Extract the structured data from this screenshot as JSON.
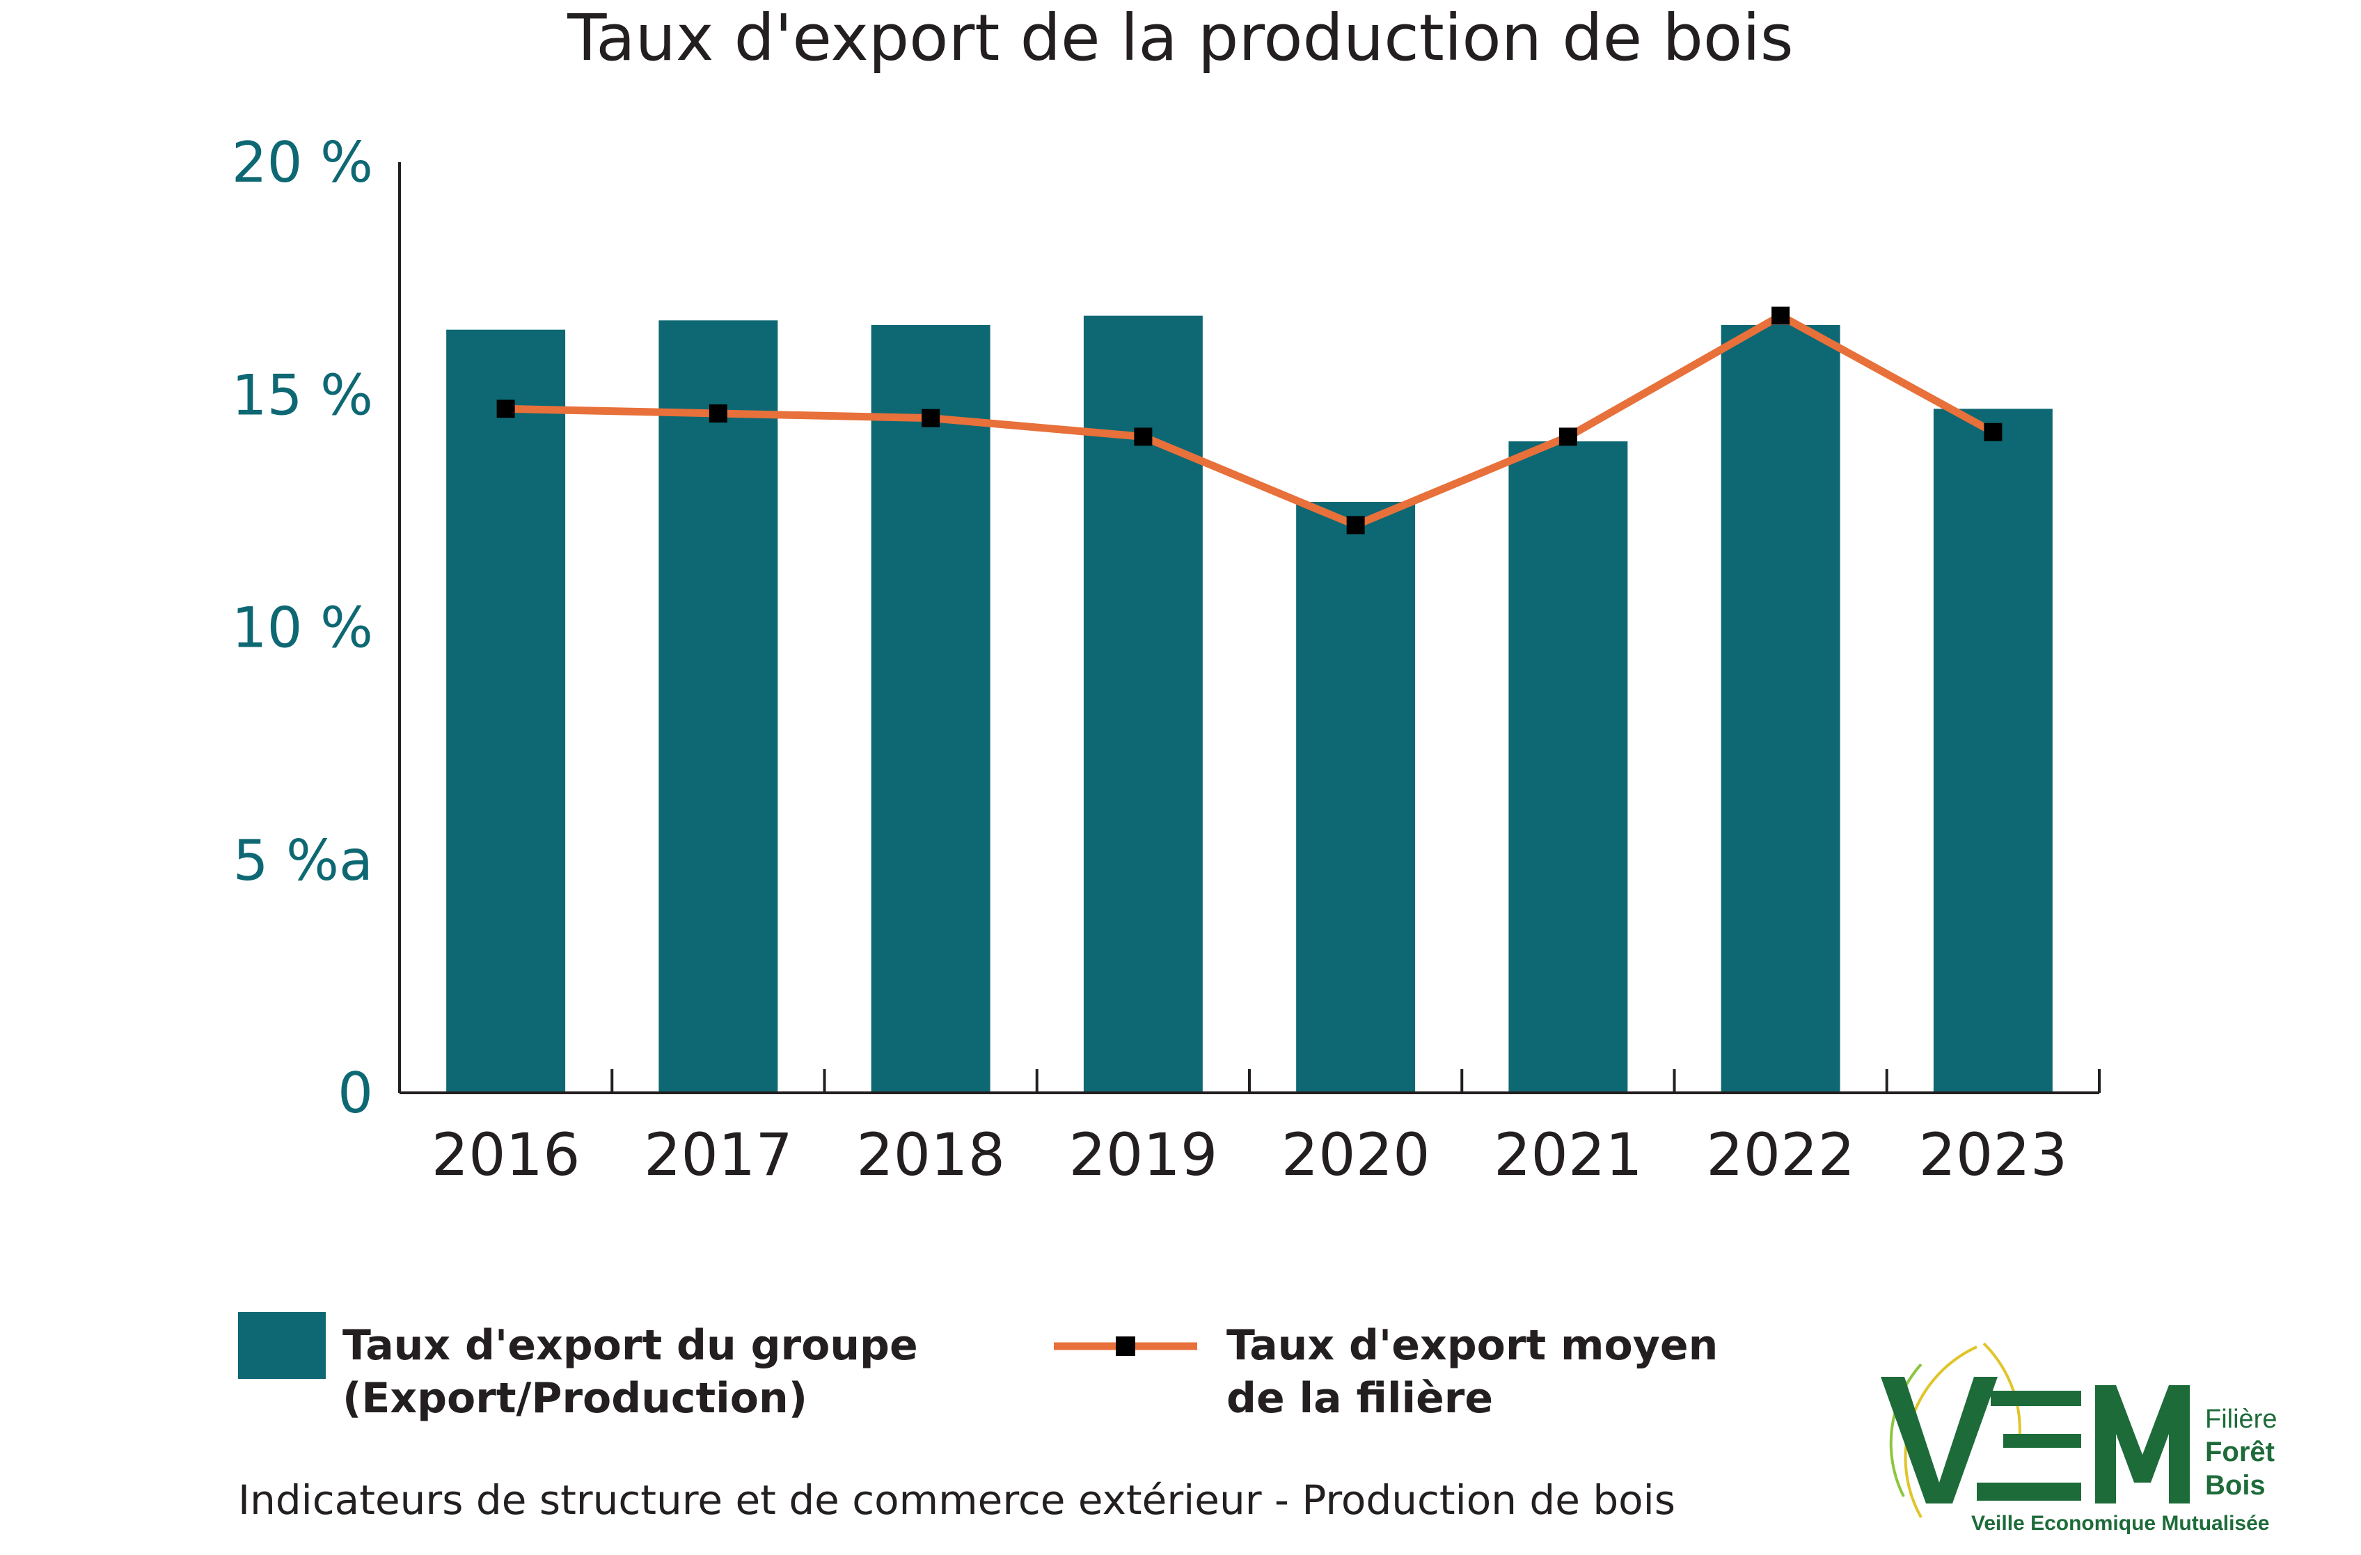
{
  "title": "Taux d'export de la production de bois",
  "chart_data": {
    "type": "bar",
    "categories": [
      "2016",
      "2017",
      "2018",
      "2019",
      "2020",
      "2021",
      "2022",
      "2023"
    ],
    "series": [
      {
        "name": "Taux d'export du groupe (Export/Production)",
        "type": "bar",
        "values": [
          16.4,
          16.6,
          16.5,
          16.7,
          12.7,
          14.0,
          16.5,
          14.7
        ]
      },
      {
        "name": "Taux d'export moyen de la filière",
        "type": "line",
        "values": [
          14.7,
          14.6,
          14.5,
          14.1,
          12.2,
          14.1,
          16.7,
          14.2
        ]
      }
    ],
    "y_ticks": [
      "0",
      "5 %a",
      "10 %",
      "15 %",
      "20 %"
    ],
    "y_tick_values": [
      0,
      5,
      10,
      15,
      20
    ],
    "ylim": [
      0,
      20
    ],
    "grid": false,
    "colors": {
      "bar": "#0e6873",
      "line": "#e8703a",
      "marker": "#000000",
      "axis": "#231f20",
      "ytick_text": "#0e6873",
      "xtick_text": "#231f20"
    }
  },
  "legend": {
    "bar_line1": "Taux d'export du groupe",
    "bar_line2": "(Export/Production)",
    "line_line1": "Taux d'export moyen",
    "line_line2": "de la filière"
  },
  "footer": "Indicateurs de structure et de commerce extérieur - Production de bois",
  "logo": {
    "letters": "VEM",
    "line1": "Filière",
    "line2": "Forêt",
    "line3": "Bois",
    "tagline": "Veille Economique Mutualisée",
    "colors": {
      "green": "#1e6b3a",
      "yellow": "#e0c52a",
      "lightgreen": "#8cc63f"
    }
  }
}
